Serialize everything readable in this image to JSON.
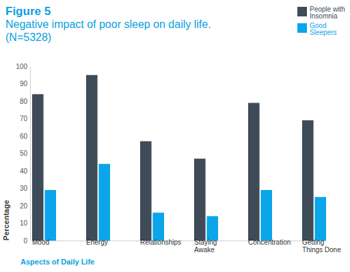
{
  "chart_data": {
    "type": "bar",
    "title": "Figure 5",
    "subtitle": "Negative impact of poor sleep on daily life. (N=5328)",
    "x_label": "Aspects of Daily Life",
    "y_label": "Percentage",
    "categories": [
      "Mood",
      "Energy",
      "Relationships",
      "Staying Awake",
      "Concentration",
      "Getting Things Done"
    ],
    "series": [
      {
        "name": "People with Insomnia",
        "color": "#3e4b58",
        "values": [
          84,
          95,
          57,
          47,
          79,
          69
        ]
      },
      {
        "name": "Good Sleepers",
        "color": "#0ba5ea",
        "values": [
          29,
          44,
          16,
          14,
          29,
          25
        ]
      }
    ],
    "ylim": [
      0,
      100
    ],
    "yticks": [
      0,
      10,
      20,
      30,
      40,
      50,
      60,
      70,
      80,
      90,
      100
    ],
    "grid": false,
    "legend": "top-right"
  }
}
